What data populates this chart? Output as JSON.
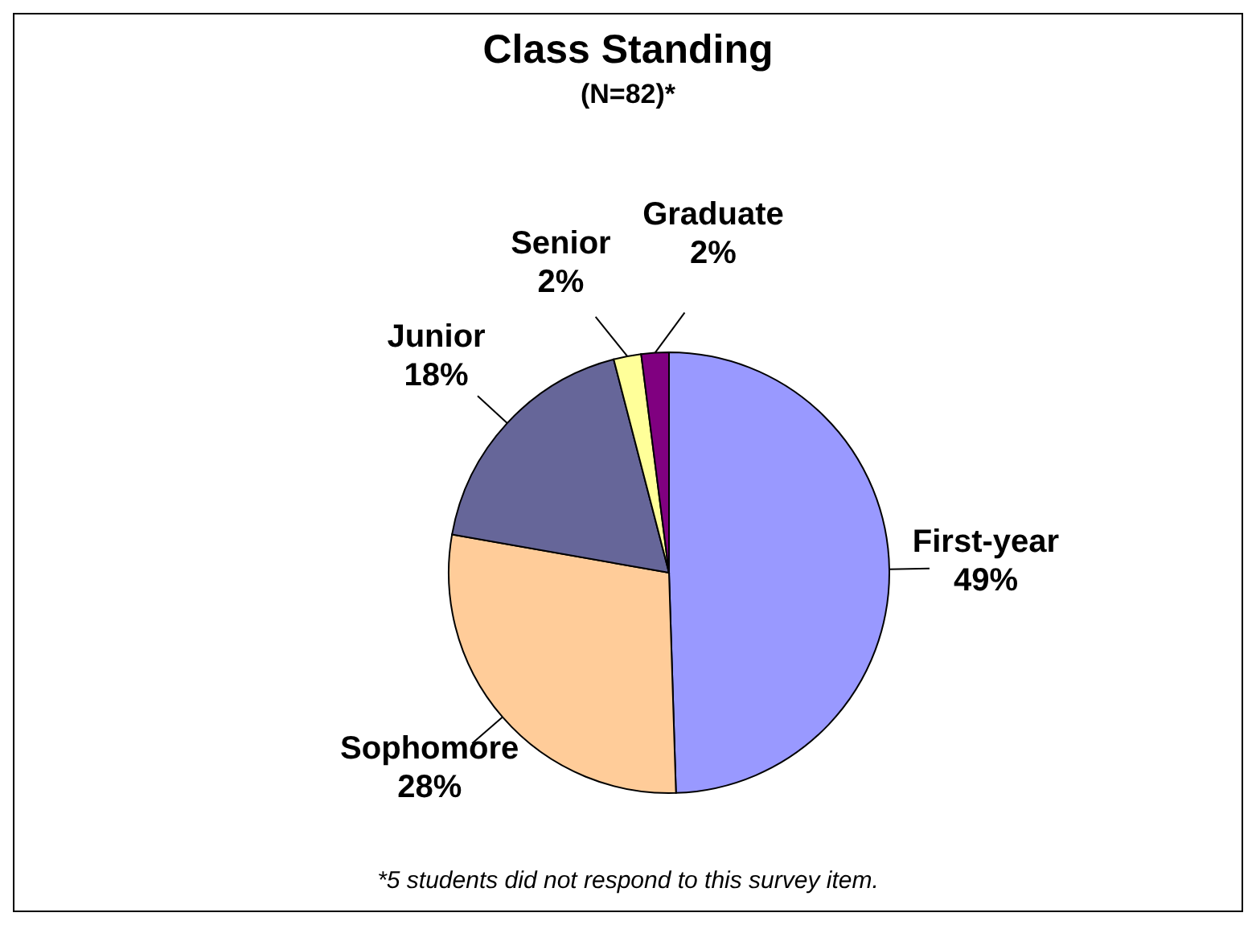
{
  "chart_data": {
    "type": "pie",
    "title": "Class Standing",
    "subtitle": "(N=82)*",
    "categories": [
      "First-year",
      "Sophomore",
      "Junior",
      "Senior",
      "Graduate"
    ],
    "values": [
      49,
      28,
      18,
      2,
      2
    ],
    "value_labels": [
      "49%",
      "28%",
      "18%",
      "2%",
      "2%"
    ],
    "colors": [
      "#9999ff",
      "#ffcc99",
      "#666699",
      "#ffff99",
      "#800080"
    ],
    "annotations": [
      "*5 students did not respond to this survey item."
    ],
    "legend": false
  }
}
